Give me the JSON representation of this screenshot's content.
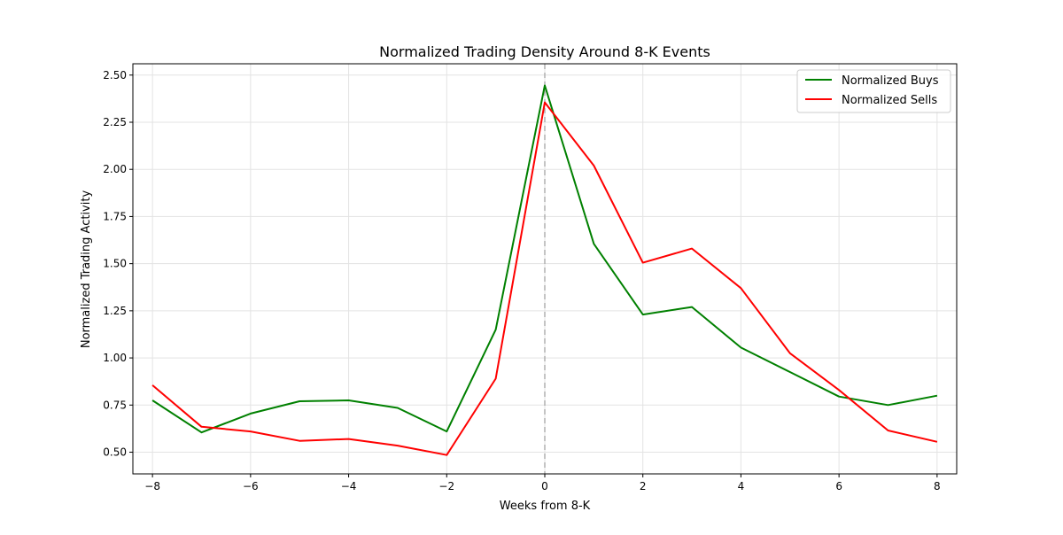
{
  "chart_data": {
    "type": "line",
    "title": "Normalized Trading Density Around 8-K Events",
    "xlabel": "Weeks from 8-K",
    "ylabel": "Normalized Trading Activity",
    "x": [
      -8,
      -7,
      -6,
      -5,
      -4,
      -3,
      -2,
      -1,
      0,
      1,
      2,
      3,
      4,
      5,
      6,
      7,
      8
    ],
    "xlim": [
      -8.4,
      8.4
    ],
    "ylim": [
      0.385,
      2.56
    ],
    "xticks": [
      -8,
      -6,
      -4,
      -2,
      0,
      2,
      4,
      6,
      8
    ],
    "xtick_labels": [
      "−8",
      "−6",
      "−4",
      "−2",
      "0",
      "2",
      "4",
      "6",
      "8"
    ],
    "yticks": [
      0.5,
      0.75,
      1.0,
      1.25,
      1.5,
      1.75,
      2.0,
      2.25,
      2.5
    ],
    "ytick_labels": [
      "0.50",
      "0.75",
      "1.00",
      "1.25",
      "1.50",
      "1.75",
      "2.00",
      "2.25",
      "2.50"
    ],
    "grid": true,
    "legend_position": "top-right",
    "event_line_x": 0,
    "event_line_color": "#b0b0b0",
    "series": [
      {
        "name": "Normalized Buys",
        "color": "#008000",
        "values": [
          0.775,
          0.605,
          0.705,
          0.77,
          0.775,
          0.735,
          0.61,
          1.15,
          2.445,
          1.605,
          1.23,
          1.27,
          1.055,
          0.925,
          0.795,
          0.75,
          0.8
        ]
      },
      {
        "name": "Normalized Sells",
        "color": "#ff0000",
        "values": [
          0.855,
          0.635,
          0.61,
          0.56,
          0.57,
          0.535,
          0.485,
          0.89,
          2.355,
          2.02,
          1.505,
          1.58,
          1.37,
          1.025,
          0.83,
          0.615,
          0.555
        ]
      }
    ]
  }
}
